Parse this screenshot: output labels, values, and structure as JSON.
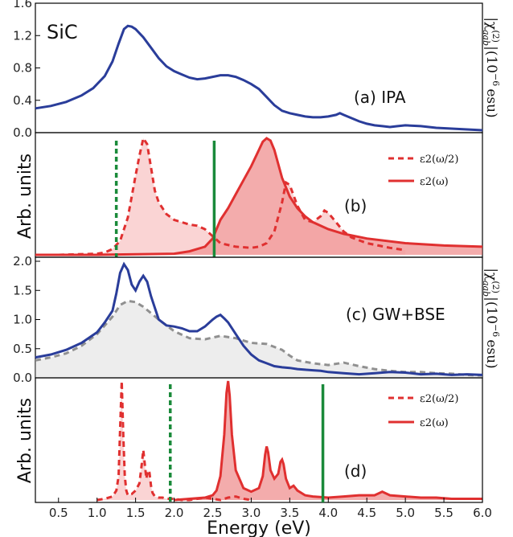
{
  "chart_data": [
    {
      "type": "line",
      "panel_label": "(a) IPA",
      "corner_label": "SiC",
      "ylabel": "|χ(2)aab| (10−6 esu)",
      "ylabel_parts": {
        "abs": "|χ",
        "sup": "(2)",
        "sub": "aab",
        "rest": "|(10",
        "exp": "−6",
        "unit": "esu)"
      },
      "xlim": [
        0.2,
        6.0
      ],
      "ylim": [
        0.0,
        1.6
      ],
      "yticks": [
        "0.0",
        "0.4",
        "0.8",
        "1.2",
        "1.6"
      ],
      "series": [
        {
          "color": "#2a3d9a",
          "x": [
            0.2,
            0.4,
            0.6,
            0.8,
            0.95,
            1.1,
            1.2,
            1.28,
            1.35,
            1.4,
            1.45,
            1.5,
            1.6,
            1.7,
            1.8,
            1.9,
            2.0,
            2.1,
            2.2,
            2.3,
            2.4,
            2.5,
            2.6,
            2.7,
            2.8,
            2.9,
            3.0,
            3.1,
            3.2,
            3.3,
            3.4,
            3.5,
            3.6,
            3.7,
            3.8,
            3.9,
            4.0,
            4.1,
            4.15,
            4.2,
            4.3,
            4.4,
            4.5,
            4.6,
            4.7,
            4.8,
            4.9,
            5.0,
            5.2,
            5.4,
            5.6,
            5.8,
            6.0
          ],
          "y": [
            0.3,
            0.33,
            0.38,
            0.46,
            0.55,
            0.7,
            0.88,
            1.1,
            1.28,
            1.32,
            1.31,
            1.28,
            1.18,
            1.05,
            0.92,
            0.82,
            0.76,
            0.72,
            0.68,
            0.66,
            0.67,
            0.69,
            0.71,
            0.71,
            0.69,
            0.65,
            0.6,
            0.54,
            0.44,
            0.34,
            0.27,
            0.24,
            0.22,
            0.2,
            0.19,
            0.19,
            0.2,
            0.22,
            0.24,
            0.22,
            0.18,
            0.14,
            0.11,
            0.09,
            0.08,
            0.07,
            0.08,
            0.09,
            0.08,
            0.06,
            0.05,
            0.04,
            0.03
          ]
        }
      ]
    },
    {
      "type": "area",
      "panel_label": "(b)",
      "ylabel": "Arb. units",
      "xlim": [
        0.2,
        6.0
      ],
      "legend": [
        "ε2(ω/2)",
        "ε2(ω)"
      ],
      "legend_placement": "top-right",
      "vlines": [
        {
          "x": 1.25,
          "style": "dashed",
          "color": "#1a8a3a"
        },
        {
          "x": 2.52,
          "style": "solid",
          "color": "#1a8a3a"
        }
      ],
      "series": [
        {
          "name": "ε2(ω/2)",
          "style": "dashed",
          "color": "#e03030",
          "x": [
            0.5,
            1.0,
            1.1,
            1.2,
            1.3,
            1.4,
            1.45,
            1.5,
            1.55,
            1.6,
            1.65,
            1.7,
            1.75,
            1.8,
            1.9,
            2.0,
            2.1,
            2.2,
            2.3,
            2.4,
            2.5,
            2.6,
            2.8,
            3.0,
            3.1,
            3.2,
            3.3,
            3.4,
            3.45,
            3.5,
            3.6,
            3.7,
            3.8,
            3.9,
            3.95,
            4.0,
            4.1,
            4.2,
            4.3,
            4.5,
            4.8,
            5.0
          ],
          "y": [
            0.0,
            0.01,
            0.02,
            0.05,
            0.12,
            0.32,
            0.5,
            0.68,
            0.85,
            1.0,
            0.95,
            0.75,
            0.55,
            0.45,
            0.35,
            0.3,
            0.28,
            0.26,
            0.25,
            0.22,
            0.16,
            0.1,
            0.07,
            0.06,
            0.07,
            0.1,
            0.2,
            0.45,
            0.62,
            0.6,
            0.42,
            0.3,
            0.28,
            0.33,
            0.38,
            0.36,
            0.28,
            0.2,
            0.15,
            0.1,
            0.06,
            0.04
          ]
        },
        {
          "name": "ε2(ω)",
          "style": "solid",
          "color": "#e03030",
          "x": [
            0.2,
            1.0,
            2.0,
            2.2,
            2.4,
            2.5,
            2.6,
            2.7,
            2.8,
            2.9,
            3.0,
            3.1,
            3.15,
            3.2,
            3.25,
            3.3,
            3.4,
            3.5,
            3.6,
            3.7,
            3.8,
            4.0,
            4.2,
            4.5,
            5.0,
            5.5,
            6.0
          ],
          "y": [
            0.0,
            0.0,
            0.01,
            0.03,
            0.07,
            0.14,
            0.3,
            0.4,
            0.52,
            0.64,
            0.76,
            0.9,
            0.97,
            1.0,
            0.98,
            0.9,
            0.66,
            0.5,
            0.4,
            0.33,
            0.28,
            0.22,
            0.18,
            0.14,
            0.1,
            0.08,
            0.07
          ]
        }
      ]
    },
    {
      "type": "line",
      "panel_label": "(c) GW+BSE",
      "ylabel": "|χ(2)aab| (10−6 esu)",
      "ylabel_parts": {
        "abs": "|χ",
        "sup": "(2)",
        "sub": "aab",
        "rest": "|(10",
        "exp": "−6",
        "unit": "esu)"
      },
      "xlim": [
        0.2,
        6.0
      ],
      "ylim": [
        0.0,
        2.0
      ],
      "yticks": [
        "0.0",
        "0.5",
        "1.0",
        "1.5",
        "2.0"
      ],
      "series": [
        {
          "color": "#2a3d9a",
          "style": "solid",
          "x": [
            0.2,
            0.4,
            0.6,
            0.8,
            1.0,
            1.1,
            1.2,
            1.25,
            1.3,
            1.35,
            1.4,
            1.45,
            1.5,
            1.55,
            1.6,
            1.65,
            1.7,
            1.75,
            1.8,
            1.9,
            2.0,
            2.1,
            2.2,
            2.3,
            2.4,
            2.5,
            2.55,
            2.6,
            2.65,
            2.7,
            2.8,
            2.9,
            3.0,
            3.1,
            3.2,
            3.3,
            3.4,
            3.5,
            3.6,
            3.7,
            3.8,
            3.9,
            4.0,
            4.2,
            4.4,
            4.6,
            4.8,
            5.0,
            5.2,
            5.4,
            5.6,
            5.8,
            6.0
          ],
          "y": [
            0.35,
            0.4,
            0.48,
            0.6,
            0.78,
            0.95,
            1.15,
            1.45,
            1.8,
            1.95,
            1.85,
            1.6,
            1.5,
            1.65,
            1.75,
            1.65,
            1.4,
            1.2,
            1.0,
            0.9,
            0.88,
            0.85,
            0.8,
            0.8,
            0.88,
            1.0,
            1.05,
            1.08,
            1.02,
            0.95,
            0.75,
            0.55,
            0.4,
            0.3,
            0.25,
            0.2,
            0.18,
            0.17,
            0.15,
            0.14,
            0.13,
            0.12,
            0.1,
            0.08,
            0.06,
            0.08,
            0.1,
            0.09,
            0.06,
            0.07,
            0.05,
            0.06,
            0.05
          ]
        },
        {
          "color": "#909090",
          "style": "dashed",
          "x": [
            0.2,
            0.4,
            0.6,
            0.8,
            1.0,
            1.2,
            1.3,
            1.4,
            1.5,
            1.6,
            1.8,
            2.0,
            2.2,
            2.4,
            2.6,
            2.8,
            3.0,
            3.2,
            3.4,
            3.5,
            3.6,
            3.8,
            4.0,
            4.2,
            4.4,
            4.6,
            4.8,
            5.0,
            5.2,
            5.4,
            5.6,
            5.8,
            6.0
          ],
          "y": [
            0.3,
            0.35,
            0.42,
            0.55,
            0.75,
            1.05,
            1.25,
            1.32,
            1.3,
            1.22,
            1.0,
            0.8,
            0.68,
            0.66,
            0.72,
            0.68,
            0.6,
            0.58,
            0.48,
            0.38,
            0.3,
            0.25,
            0.22,
            0.26,
            0.2,
            0.15,
            0.12,
            0.1,
            0.1,
            0.08,
            0.07,
            0.05,
            0.04
          ]
        }
      ]
    },
    {
      "type": "area",
      "panel_label": "(d)",
      "ylabel": "Arb. units",
      "xlim": [
        0.2,
        6.0
      ],
      "xlabel": "Energy (eV)",
      "xticks": [
        "0.5",
        "1.0",
        "1.5",
        "2.0",
        "2.5",
        "3.0",
        "3.5",
        "4.0",
        "4.5",
        "5.0",
        "5.5",
        "6.0"
      ],
      "legend": [
        "ε2(ω/2)",
        "ε2(ω)"
      ],
      "legend_placement": "top-right",
      "vlines": [
        {
          "x": 1.95,
          "style": "dashed",
          "color": "#1a8a3a"
        },
        {
          "x": 3.93,
          "style": "solid",
          "color": "#1a8a3a"
        }
      ],
      "series": [
        {
          "name": "ε2(ω/2)",
          "style": "dashed",
          "color": "#e03030",
          "x": [
            1.0,
            1.1,
            1.2,
            1.25,
            1.28,
            1.3,
            1.32,
            1.34,
            1.36,
            1.38,
            1.4,
            1.45,
            1.5,
            1.55,
            1.58,
            1.6,
            1.62,
            1.64,
            1.66,
            1.68,
            1.7,
            1.72,
            1.75,
            1.8,
            1.85,
            1.9,
            2.0,
            2.1,
            2.2,
            2.3,
            2.4,
            2.5,
            2.6,
            2.7,
            2.8,
            2.9,
            3.0
          ],
          "y": [
            0.0,
            0.01,
            0.03,
            0.08,
            0.2,
            0.6,
            1.0,
            0.55,
            0.2,
            0.08,
            0.04,
            0.05,
            0.08,
            0.14,
            0.3,
            0.42,
            0.3,
            0.18,
            0.25,
            0.23,
            0.12,
            0.06,
            0.03,
            0.02,
            0.02,
            0.01,
            0.01,
            0.0,
            0.0,
            0.01,
            0.02,
            0.01,
            0.0,
            0.02,
            0.03,
            0.01,
            0.0
          ]
        },
        {
          "name": "ε2(ω)",
          "style": "solid",
          "color": "#e03030",
          "x": [
            2.0,
            2.2,
            2.4,
            2.5,
            2.55,
            2.6,
            2.65,
            2.68,
            2.7,
            2.72,
            2.75,
            2.8,
            2.9,
            3.0,
            3.1,
            3.15,
            3.18,
            3.2,
            3.22,
            3.25,
            3.3,
            3.35,
            3.38,
            3.4,
            3.42,
            3.45,
            3.5,
            3.55,
            3.6,
            3.7,
            3.8,
            4.0,
            4.2,
            4.4,
            4.6,
            4.7,
            4.8,
            5.0,
            5.2,
            5.4,
            5.6,
            5.8,
            6.0
          ],
          "y": [
            0.0,
            0.01,
            0.02,
            0.04,
            0.08,
            0.2,
            0.55,
            0.9,
            1.0,
            0.88,
            0.55,
            0.25,
            0.1,
            0.07,
            0.1,
            0.2,
            0.38,
            0.45,
            0.4,
            0.25,
            0.18,
            0.22,
            0.32,
            0.34,
            0.3,
            0.18,
            0.1,
            0.12,
            0.08,
            0.04,
            0.03,
            0.02,
            0.03,
            0.04,
            0.04,
            0.07,
            0.04,
            0.03,
            0.02,
            0.02,
            0.01,
            0.01,
            0.01
          ]
        }
      ]
    }
  ]
}
